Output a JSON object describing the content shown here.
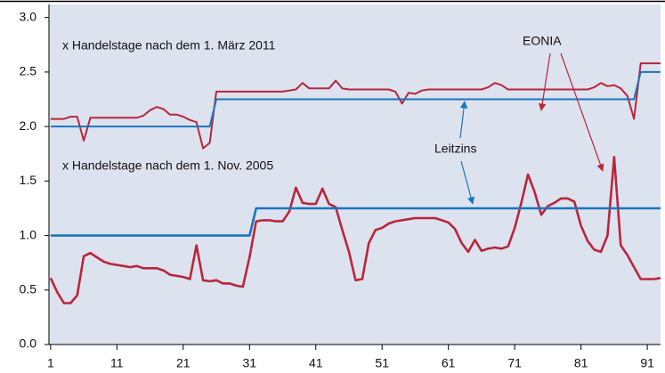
{
  "chart_data": {
    "type": "line",
    "annotations": [
      "x Handelstage nach dem 1. März 2011",
      "x Handelstage nach dem 1. Nov. 2005"
    ],
    "x": [
      1,
      2,
      3,
      4,
      5,
      6,
      7,
      8,
      9,
      10,
      11,
      12,
      13,
      14,
      15,
      16,
      17,
      18,
      19,
      20,
      21,
      22,
      23,
      24,
      25,
      26,
      27,
      28,
      29,
      30,
      31,
      32,
      33,
      34,
      35,
      36,
      37,
      38,
      39,
      40,
      41,
      42,
      43,
      44,
      45,
      46,
      47,
      48,
      49,
      50,
      51,
      52,
      53,
      54,
      55,
      56,
      57,
      58,
      59,
      60,
      61,
      62,
      63,
      64,
      65,
      66,
      67,
      68,
      69,
      70,
      71,
      72,
      73,
      74,
      75,
      76,
      77,
      78,
      79,
      80,
      81,
      82,
      83,
      84,
      85,
      86,
      87,
      88,
      89,
      90,
      91,
      92,
      93
    ],
    "series": [
      {
        "name": "EONIA",
        "color": "#b8263b",
        "values": [
          2.07,
          2.07,
          2.07,
          2.09,
          2.09,
          1.87,
          2.08,
          2.08,
          2.08,
          2.08,
          2.08,
          2.08,
          2.08,
          2.08,
          2.1,
          2.15,
          2.18,
          2.16,
          2.11,
          2.11,
          2.09,
          2.06,
          2.04,
          1.8,
          1.85,
          2.32,
          2.32,
          2.32,
          2.32,
          2.32,
          2.32,
          2.32,
          2.32,
          2.32,
          2.32,
          2.32,
          2.33,
          2.34,
          2.4,
          2.35,
          2.35,
          2.35,
          2.35,
          2.42,
          2.35,
          2.34,
          2.34,
          2.34,
          2.34,
          2.34,
          2.34,
          2.34,
          2.32,
          2.21,
          2.31,
          2.3,
          2.33,
          2.34,
          2.34,
          2.34,
          2.34,
          2.34,
          2.34,
          2.34,
          2.34,
          2.34,
          2.36,
          2.4,
          2.38,
          2.34,
          2.34,
          2.34,
          2.34,
          2.34,
          2.34,
          2.34,
          2.34,
          2.34,
          2.34,
          2.34,
          2.34,
          2.34,
          2.36,
          2.4,
          2.37,
          2.38,
          2.35,
          2.28,
          2.07,
          2.58,
          2.58,
          2.58,
          2.58
        ]
      },
      {
        "name": "Leitzins",
        "color": "#1b75bb",
        "values": [
          2.0,
          2.0,
          2.0,
          2.0,
          2.0,
          2.0,
          2.0,
          2.0,
          2.0,
          2.0,
          2.0,
          2.0,
          2.0,
          2.0,
          2.0,
          2.0,
          2.0,
          2.0,
          2.0,
          2.0,
          2.0,
          2.0,
          2.0,
          2.0,
          2.0,
          2.25,
          2.25,
          2.25,
          2.25,
          2.25,
          2.25,
          2.25,
          2.25,
          2.25,
          2.25,
          2.25,
          2.25,
          2.25,
          2.25,
          2.25,
          2.25,
          2.25,
          2.25,
          2.25,
          2.25,
          2.25,
          2.25,
          2.25,
          2.25,
          2.25,
          2.25,
          2.25,
          2.25,
          2.25,
          2.25,
          2.25,
          2.25,
          2.25,
          2.25,
          2.25,
          2.25,
          2.25,
          2.25,
          2.25,
          2.25,
          2.25,
          2.25,
          2.25,
          2.25,
          2.25,
          2.25,
          2.25,
          2.25,
          2.25,
          2.25,
          2.25,
          2.25,
          2.25,
          2.25,
          2.25,
          2.25,
          2.25,
          2.25,
          2.25,
          2.25,
          2.25,
          2.25,
          2.25,
          2.25,
          2.5,
          2.5,
          2.5,
          2.5
        ]
      },
      {
        "color": "#b8263b",
        "values": [
          0.61,
          0.48,
          0.38,
          0.38,
          0.45,
          0.81,
          0.84,
          0.8,
          0.76,
          0.74,
          0.73,
          0.72,
          0.71,
          0.72,
          0.7,
          0.7,
          0.7,
          0.68,
          0.64,
          0.63,
          0.62,
          0.6,
          0.91,
          0.59,
          0.58,
          0.59,
          0.56,
          0.56,
          0.54,
          0.53,
          0.8,
          1.13,
          1.14,
          1.14,
          1.13,
          1.13,
          1.22,
          1.44,
          1.3,
          1.29,
          1.29,
          1.43,
          1.29,
          1.26,
          1.05,
          0.85,
          0.59,
          0.6,
          0.93,
          1.05,
          1.07,
          1.11,
          1.13,
          1.14,
          1.15,
          1.16,
          1.16,
          1.16,
          1.16,
          1.14,
          1.12,
          1.06,
          0.93,
          0.85,
          0.96,
          0.86,
          0.88,
          0.89,
          0.88,
          0.9,
          1.07,
          1.3,
          1.56,
          1.4,
          1.19,
          1.27,
          1.3,
          1.34,
          1.34,
          1.31,
          1.09,
          0.95,
          0.87,
          0.85,
          1.0,
          1.72,
          0.91,
          0.82,
          0.71,
          0.6,
          0.6,
          0.6,
          0.61
        ]
      },
      {
        "color": "#1b75bb",
        "values": [
          1.0,
          1.0,
          1.0,
          1.0,
          1.0,
          1.0,
          1.0,
          1.0,
          1.0,
          1.0,
          1.0,
          1.0,
          1.0,
          1.0,
          1.0,
          1.0,
          1.0,
          1.0,
          1.0,
          1.0,
          1.0,
          1.0,
          1.0,
          1.0,
          1.0,
          1.0,
          1.0,
          1.0,
          1.0,
          1.0,
          1.0,
          1.25,
          1.25,
          1.25,
          1.25,
          1.25,
          1.25,
          1.25,
          1.25,
          1.25,
          1.25,
          1.25,
          1.25,
          1.25,
          1.25,
          1.25,
          1.25,
          1.25,
          1.25,
          1.25,
          1.25,
          1.25,
          1.25,
          1.25,
          1.25,
          1.25,
          1.25,
          1.25,
          1.25,
          1.25,
          1.25,
          1.25,
          1.25,
          1.25,
          1.25,
          1.25,
          1.25,
          1.25,
          1.25,
          1.25,
          1.25,
          1.25,
          1.25,
          1.25,
          1.25,
          1.25,
          1.25,
          1.25,
          1.25,
          1.25,
          1.25,
          1.25,
          1.25,
          1.25,
          1.25,
          1.25,
          1.25,
          1.25,
          1.25,
          1.25,
          1.25,
          1.25,
          1.25
        ]
      }
    ],
    "xlim": [
      0.75,
      93
    ],
    "xticks": [
      1,
      11,
      21,
      31,
      41,
      51,
      61,
      71,
      81,
      91
    ],
    "ylim": [
      0,
      3.12
    ],
    "yticks": [
      {
        "value": 0,
        "label": "0.0"
      },
      0.5,
      {
        "value": 1,
        "label": "1.0"
      },
      1.5,
      {
        "value": 2,
        "label": "2.0"
      },
      2.5,
      {
        "value": 3,
        "label": "3.0"
      }
    ],
    "grid": false,
    "plot_background": "#dde2ef"
  }
}
